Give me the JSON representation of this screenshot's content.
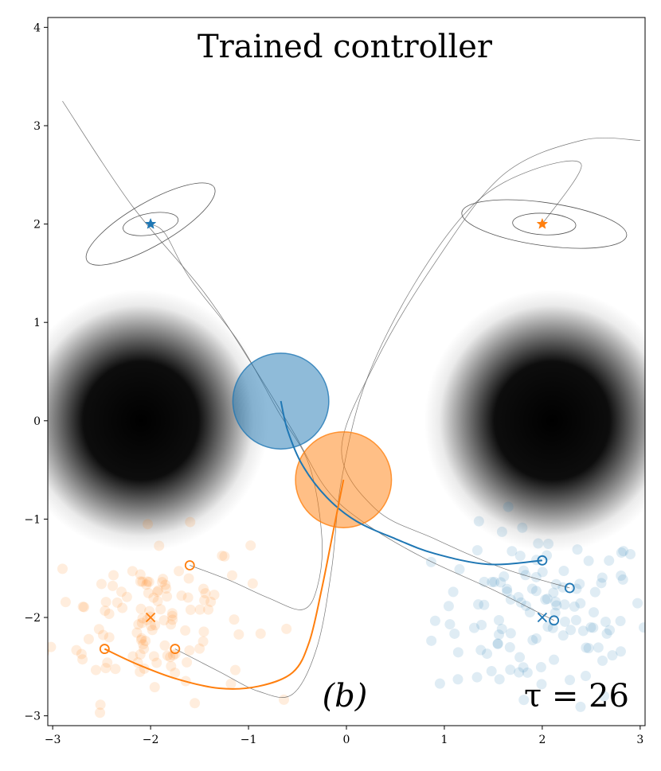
{
  "chart_data": {
    "type": "scatter",
    "title": "Trained controller",
    "panel_label": "(b)",
    "annotation": "τ = 26",
    "xlim": [
      -3.05,
      3.05
    ],
    "ylim": [
      -3.1,
      4.1
    ],
    "xticks": [
      -3,
      -2,
      -1,
      0,
      1,
      2,
      3
    ],
    "yticks": [
      -3,
      -2,
      -1,
      0,
      1,
      2,
      3,
      4
    ],
    "xtick_labels": [
      "−3",
      "−2",
      "−1",
      "0",
      "1",
      "2",
      "3"
    ],
    "ytick_labels": [
      "−3",
      "−2",
      "−1",
      "0",
      "1",
      "2",
      "3",
      "4"
    ],
    "grid": false,
    "colors": {
      "blue": "#1f77b4",
      "orange": "#ff7f0e",
      "gray": "#808080"
    },
    "obstacles": [
      {
        "name": "left",
        "x_range": [
          -3.0,
          -1.2
        ],
        "y_center": 0.0
      },
      {
        "name": "right",
        "x_range": [
          1.2,
          3.0
        ],
        "y_center": 0.0
      }
    ],
    "agents": [
      {
        "name": "blue",
        "color": "#1f77b4",
        "position": [
          -0.67,
          0.2
        ],
        "radius": 0.49,
        "goal": [
          -2.0,
          2.0
        ]
      },
      {
        "name": "orange",
        "color": "#ff7f0e",
        "position": [
          -0.03,
          -0.6
        ],
        "radius": 0.49,
        "goal": [
          2.0,
          2.0
        ]
      }
    ],
    "trajectories": [
      {
        "series": "blue",
        "points": [
          [
            -0.67,
            0.2
          ],
          [
            -0.6,
            -0.1
          ],
          [
            -0.45,
            -0.45
          ],
          [
            -0.2,
            -0.78
          ],
          [
            0.1,
            -1.02
          ],
          [
            0.5,
            -1.2
          ],
          [
            0.9,
            -1.35
          ],
          [
            1.45,
            -1.46
          ],
          [
            2.0,
            -1.42
          ]
        ]
      },
      {
        "series": "orange",
        "points": [
          [
            -0.03,
            -0.6
          ],
          [
            -0.13,
            -1.1
          ],
          [
            -0.25,
            -1.7
          ],
          [
            -0.38,
            -2.25
          ],
          [
            -0.55,
            -2.56
          ],
          [
            -0.9,
            -2.7
          ],
          [
            -1.3,
            -2.72
          ],
          [
            -1.75,
            -2.62
          ],
          [
            -2.15,
            -2.47
          ],
          [
            -2.47,
            -2.32
          ]
        ]
      }
    ],
    "initial_positions": {
      "blue": [
        [
          2.0,
          -1.42
        ],
        [
          2.28,
          -1.7
        ],
        [
          2.12,
          -2.03
        ]
      ],
      "orange": [
        [
          -2.47,
          -2.32
        ],
        [
          -1.75,
          -2.32
        ],
        [
          -1.6,
          -1.47
        ]
      ]
    },
    "mean_start": {
      "blue": [
        2.0,
        -2.0
      ],
      "orange": [
        -2.0,
        -2.0
      ]
    },
    "gray_paths": [
      [
        [
          -1.6,
          -1.47
        ],
        [
          -1.2,
          -1.62
        ],
        [
          -0.8,
          -1.8
        ],
        [
          -0.45,
          -1.92
        ],
        [
          -0.3,
          -1.7
        ],
        [
          -0.25,
          -1.2
        ],
        [
          -0.38,
          -0.45
        ],
        [
          -0.7,
          0.1
        ],
        [
          -1.1,
          0.8
        ],
        [
          -1.6,
          1.45
        ],
        [
          -1.85,
          1.9
        ],
        [
          -2.0,
          2.0
        ]
      ],
      [
        [
          -1.75,
          -2.32
        ],
        [
          -1.3,
          -2.55
        ],
        [
          -0.9,
          -2.75
        ],
        [
          -0.55,
          -2.78
        ],
        [
          -0.3,
          -2.3
        ],
        [
          -0.15,
          -1.5
        ],
        [
          -0.05,
          -0.6
        ],
        [
          0.2,
          0.4
        ],
        [
          0.7,
          1.4
        ],
        [
          1.3,
          2.2
        ],
        [
          1.9,
          2.55
        ],
        [
          2.4,
          2.6
        ],
        [
          2.0,
          2.0
        ]
      ],
      [
        [
          2.12,
          -2.03
        ],
        [
          1.5,
          -1.72
        ],
        [
          0.8,
          -1.4
        ],
        [
          0.2,
          -1.05
        ],
        [
          -0.2,
          -0.7
        ],
        [
          -0.55,
          -0.1
        ],
        [
          -0.95,
          0.55
        ],
        [
          -1.45,
          1.3
        ],
        [
          -2.2,
          2.2
        ],
        [
          -2.9,
          3.25
        ]
      ],
      [
        [
          2.28,
          -1.7
        ],
        [
          1.6,
          -1.5
        ],
        [
          0.9,
          -1.2
        ],
        [
          0.3,
          -0.9
        ],
        [
          -0.05,
          -0.3
        ],
        [
          0.3,
          0.6
        ],
        [
          0.9,
          1.6
        ],
        [
          1.6,
          2.5
        ],
        [
          2.4,
          2.85
        ],
        [
          3.0,
          2.85
        ]
      ]
    ],
    "goal_loops": [
      {
        "center": [
          -2.0,
          2.0
        ],
        "rx": 0.75,
        "ry": 0.22,
        "tilt": -30
      },
      {
        "center": [
          2.02,
          2.0
        ],
        "rx": 0.85,
        "ry": 0.22,
        "tilt": 8
      }
    ],
    "sample_clouds": [
      {
        "series": "blue",
        "center": [
          2.0,
          -2.0
        ],
        "spread": [
          0.55,
          0.45
        ],
        "count": 120
      },
      {
        "series": "orange",
        "center": [
          -2.0,
          -2.0
        ],
        "spread": [
          0.5,
          0.42
        ],
        "count": 120
      }
    ]
  }
}
